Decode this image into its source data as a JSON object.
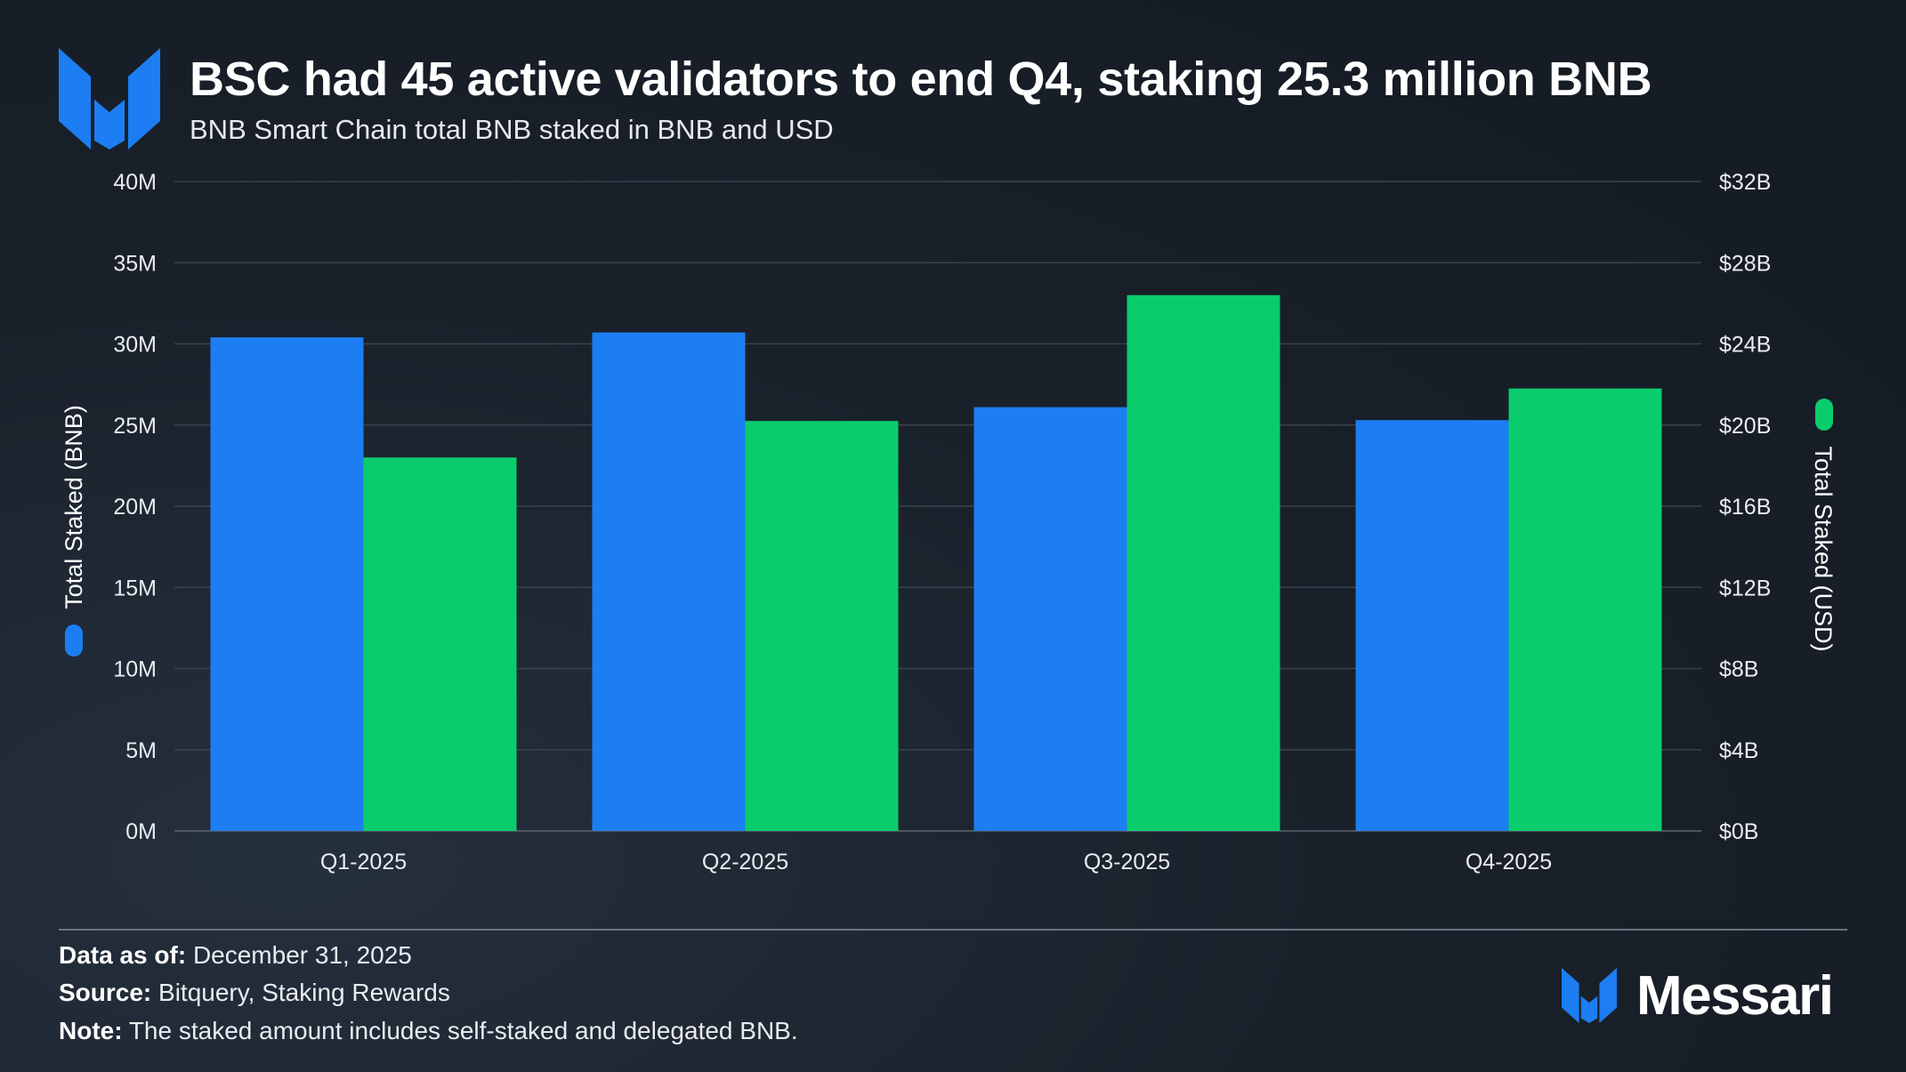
{
  "header": {
    "title": "BSC had 45 active validators to end Q4, staking 25.3 million BNB",
    "subtitle": "BNB Smart Chain total BNB staked in BNB and USD"
  },
  "chart_data": {
    "type": "bar",
    "categories": [
      "Q1-2025",
      "Q2-2025",
      "Q3-2025",
      "Q4-2025"
    ],
    "series": [
      {
        "name": "",
        "axis": "left",
        "color": "#1c7ef2",
        "values": [
          30.4,
          30.7,
          26.1,
          25.3
        ]
      },
      {
        "name": "",
        "axis": "right",
        "color": "#0bcc6c",
        "values": [
          18.4,
          20.2,
          26.4,
          21.8
        ]
      }
    ],
    "yleft": {
      "label": "Total Staked (BNB)",
      "range": [
        0,
        40
      ],
      "ticks": [
        0,
        5,
        10,
        15,
        20,
        25,
        30,
        35,
        40
      ],
      "tick_labels": [
        "0M",
        "5M",
        "10M",
        "15M",
        "20M",
        "25M",
        "30M",
        "35M",
        "40M"
      ],
      "unit": "million BNB"
    },
    "yright": {
      "label": "Total Staked (USD)",
      "range": [
        0,
        32
      ],
      "ticks": [
        0,
        4,
        8,
        12,
        16,
        20,
        24,
        28,
        32
      ],
      "tick_labels": [
        "$0B",
        "$4B",
        "$8B",
        "$12B",
        "$16B",
        "$20B",
        "$24B",
        "$28B",
        "$32B"
      ],
      "unit": "billion USD"
    },
    "grid": true,
    "legend": "axis-label swatches"
  },
  "footer": {
    "data_as_of_label": "Data as of:",
    "data_as_of_value": "December 31, 2025",
    "source_label": "Source:",
    "source_value": "Bitquery, Staking Rewards",
    "note_label": "Note:",
    "note_value": "The staked amount includes self-staked and delegated BNB."
  },
  "brand": {
    "name": "Messari",
    "accent": "#1c7ef2"
  },
  "icons": {
    "logo": "messari-logo-icon"
  }
}
